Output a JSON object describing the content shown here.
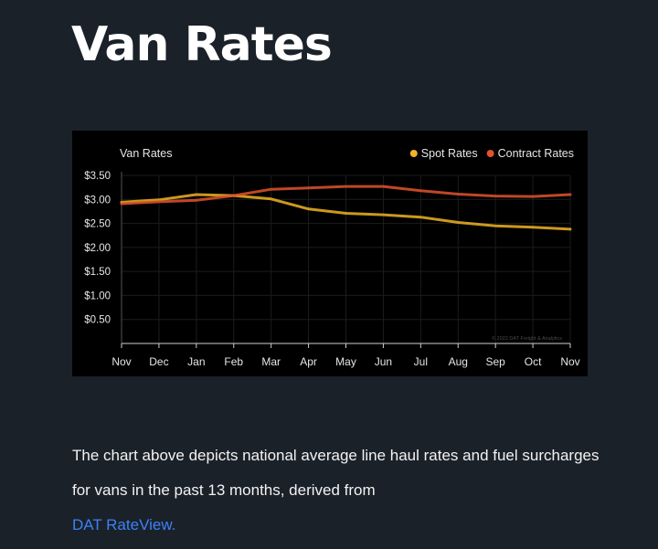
{
  "page": {
    "title": "Van Rates",
    "paragraph": "The chart above depicts national average line haul rates and fuel surcharges for vans in the past 13 months, derived from",
    "link_text": "DAT RateView."
  },
  "chart_data": {
    "type": "line",
    "title": "Van Rates",
    "watermark": "© 2022 DAT Freight & Analytics",
    "categories": [
      "Nov",
      "Dec",
      "Jan",
      "Feb",
      "Mar",
      "Apr",
      "May",
      "Jun",
      "Jul",
      "Aug",
      "Sep",
      "Oct",
      "Nov"
    ],
    "ylim": [
      0,
      3.5
    ],
    "yticks": [
      0.5,
      1.0,
      1.5,
      2.0,
      2.5,
      3.0,
      3.5
    ],
    "ytick_labels": [
      "$0.50",
      "$1.00",
      "$1.50",
      "$2.00",
      "$2.50",
      "$3.00",
      "$3.50"
    ],
    "grid": true,
    "legend_position": "top-right",
    "series": [
      {
        "name": "Spot Rates",
        "color": "#f0b323",
        "values": [
          2.94,
          2.99,
          3.1,
          3.08,
          3.01,
          2.8,
          2.71,
          2.68,
          2.63,
          2.52,
          2.45,
          2.42,
          2.38
        ]
      },
      {
        "name": "Contract Rates",
        "color": "#e0532b",
        "values": [
          2.91,
          2.95,
          2.98,
          3.08,
          3.21,
          3.24,
          3.27,
          3.27,
          3.18,
          3.11,
          3.07,
          3.06,
          3.1
        ]
      }
    ]
  }
}
